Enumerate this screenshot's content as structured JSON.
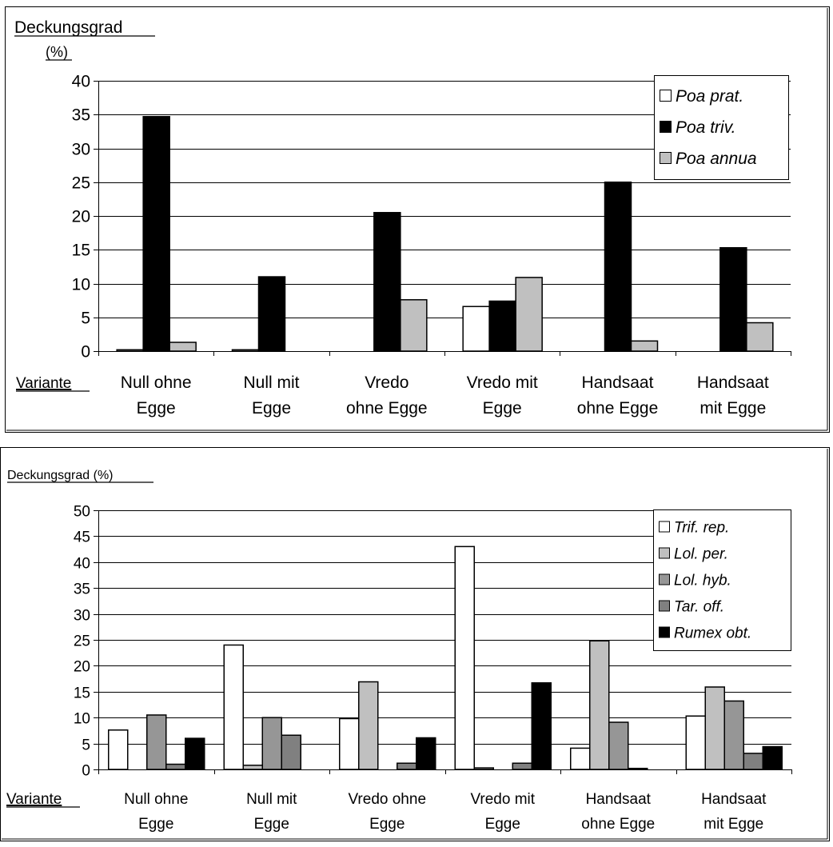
{
  "chart_data": [
    {
      "type": "bar",
      "ylabel_line1": "Deckungsgrad",
      "ylabel_line2": "(%)",
      "xlabel": "Variante",
      "categories": [
        [
          "Null ohne",
          "Egge"
        ],
        [
          "Null mit",
          "Egge"
        ],
        [
          "Vredo",
          "ohne Egge"
        ],
        [
          "Vredo mit",
          "Egge"
        ],
        [
          "Handsaat",
          "ohne Egge"
        ],
        [
          "Handsaat",
          "mit Egge"
        ]
      ],
      "ylim": [
        0,
        40
      ],
      "yticks": [
        0,
        5,
        10,
        15,
        20,
        25,
        30,
        35,
        40
      ],
      "grid": true,
      "legend_position": "top-right",
      "series": [
        {
          "name": "Poa prat.",
          "color": "#ffffff",
          "values": [
            0.2,
            0.2,
            0,
            6.6,
            0,
            0
          ]
        },
        {
          "name": "Poa triv.",
          "color": "#000000",
          "values": [
            34.7,
            11,
            20.5,
            7.4,
            25,
            15.3
          ]
        },
        {
          "name": "Poa annua",
          "color": "#c0c0c0",
          "values": [
            1.3,
            0,
            7.6,
            10.9,
            1.5,
            4.2
          ]
        }
      ]
    },
    {
      "type": "bar",
      "ylabel": "Deckungsgrad (%)",
      "xlabel": "Variante",
      "categories": [
        [
          "Null ohne",
          "Egge"
        ],
        [
          "Null mit",
          "Egge"
        ],
        [
          "Vredo ohne",
          "Egge"
        ],
        [
          "Vredo mit",
          "Egge"
        ],
        [
          "Handsaat",
          "ohne Egge"
        ],
        [
          "Handsaat",
          "mit Egge"
        ]
      ],
      "ylim": [
        0,
        50
      ],
      "yticks": [
        0,
        5,
        10,
        15,
        20,
        25,
        30,
        35,
        40,
        45,
        50
      ],
      "grid": true,
      "legend_position": "top-right",
      "series": [
        {
          "name": "Trif. rep.",
          "color": "#ffffff",
          "values": [
            7.6,
            24,
            9.8,
            43,
            4.1,
            10.3
          ]
        },
        {
          "name": "Lol. per.",
          "color": "#c0c0c0",
          "values": [
            0,
            0.8,
            16.9,
            0.3,
            24.8,
            15.9
          ]
        },
        {
          "name": "Lol. hyb.",
          "color": "#969696",
          "values": [
            10.5,
            10,
            0,
            0,
            9.1,
            13.2
          ]
        },
        {
          "name": "Tar. off.",
          "color": "#808080",
          "values": [
            1,
            6.6,
            1.2,
            1.2,
            0.2,
            3.1
          ]
        },
        {
          "name": "Rumex obt.",
          "color": "#000000",
          "values": [
            6,
            0,
            6.1,
            16.7,
            0,
            4.4
          ]
        }
      ]
    }
  ]
}
